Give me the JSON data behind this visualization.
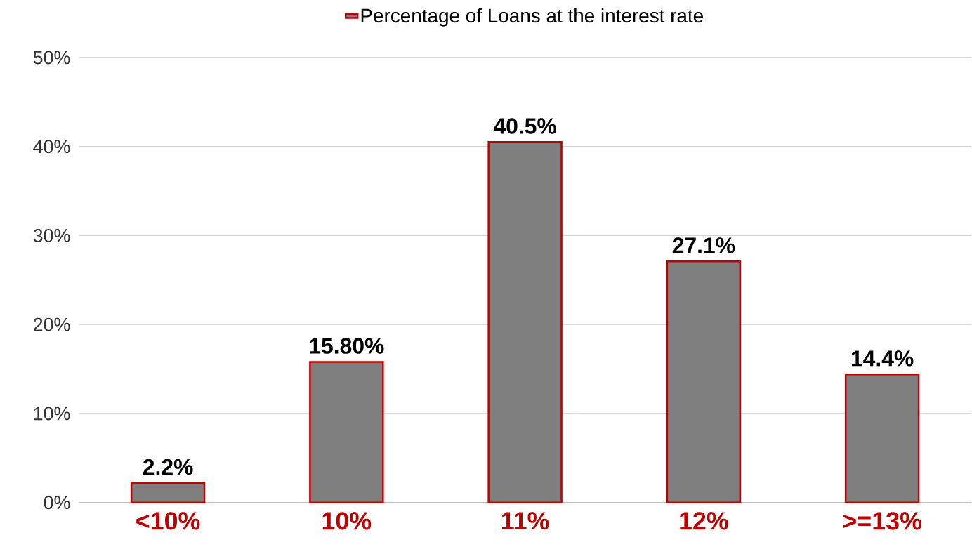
{
  "chart_data": {
    "type": "bar",
    "categories": [
      "<10%",
      "10%",
      "11%",
      "12%",
      ">=13%"
    ],
    "series": [
      {
        "name": "Percentage of Loans at the interest rate",
        "color": "#7f7f7f",
        "values": [
          2.2,
          15.8,
          40.5,
          27.1,
          14.4
        ],
        "value_labels": [
          "2.2%",
          "15.80%",
          "40.5%",
          "27.1%",
          "14.4%"
        ]
      }
    ],
    "ylim": [
      0,
      50
    ],
    "yticks": [
      {
        "value": 0,
        "label": "0%"
      },
      {
        "value": 10,
        "label": "10%"
      },
      {
        "value": 20,
        "label": "20%"
      },
      {
        "value": 30,
        "label": "30%"
      },
      {
        "value": 40,
        "label": "40%"
      },
      {
        "value": 50,
        "label": "50%"
      }
    ],
    "grid": "y",
    "legend": "top"
  }
}
